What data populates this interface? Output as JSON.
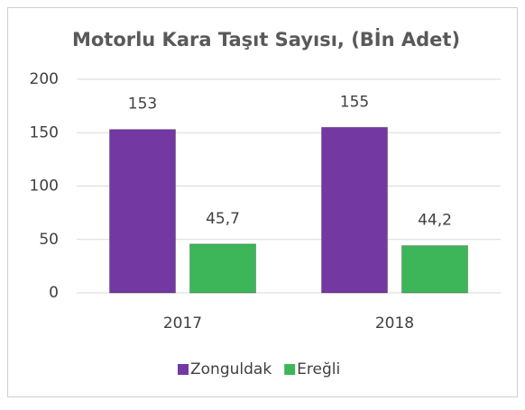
{
  "chart_data": {
    "type": "bar",
    "title": "Motorlu Kara Taşıt Sayısı, (Bİn Adet)",
    "categories": [
      "2017",
      "2018"
    ],
    "series": [
      {
        "name": "Zonguldak",
        "color": "#7438a3",
        "values": [
          153,
          155
        ],
        "value_labels": [
          "153",
          "155"
        ]
      },
      {
        "name": "Ereğli",
        "color": "#3db65a",
        "values": [
          45.7,
          44.2
        ],
        "value_labels": [
          "45,7",
          "44,2"
        ]
      }
    ],
    "ylim": [
      0,
      200
    ],
    "yticks": [
      0,
      50,
      100,
      150,
      200
    ],
    "grid": true,
    "legend": "bottom"
  }
}
